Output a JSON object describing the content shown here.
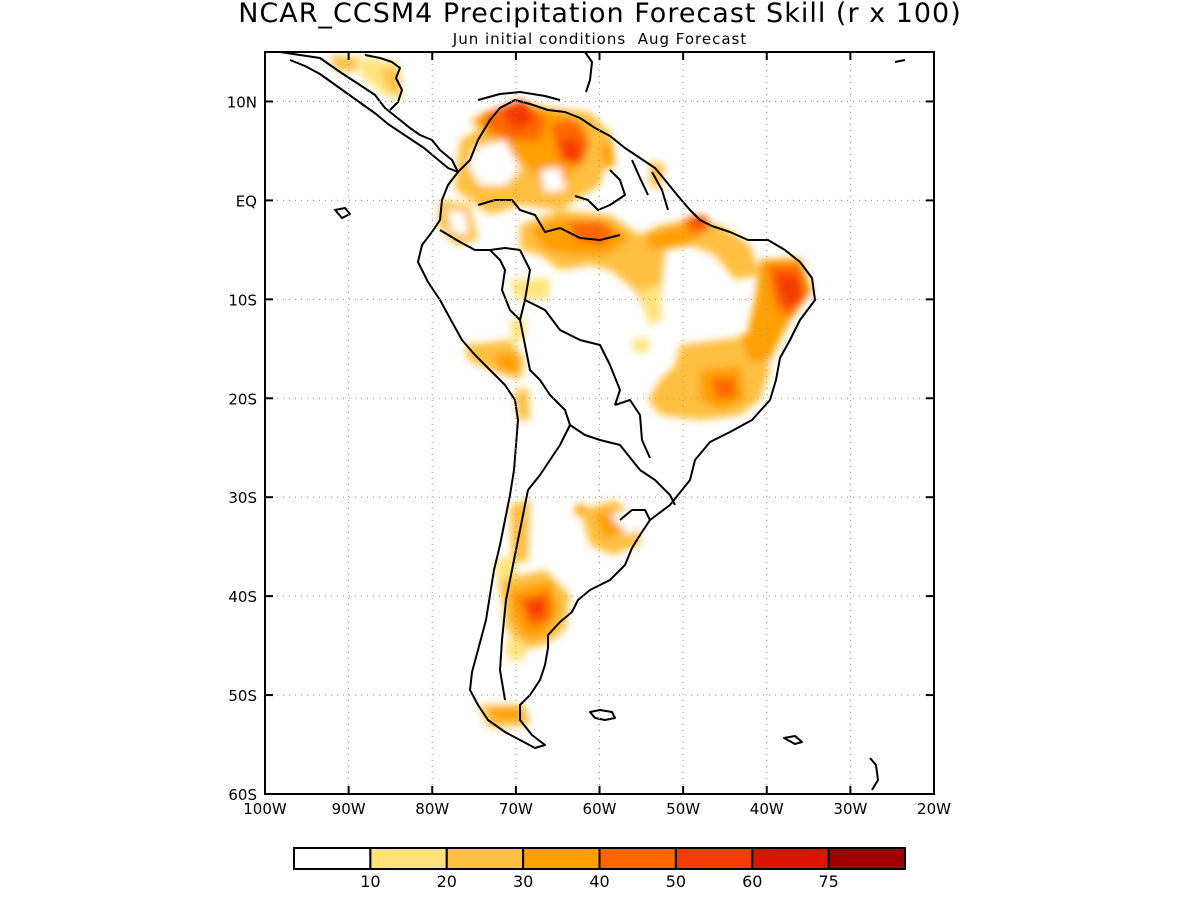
{
  "title": "NCAR_CCSM4 Precipitation Forecast Skill (r x 100)",
  "subtitle": "Jun initial conditions  Aug Forecast",
  "map": {
    "lon_range": [
      -100,
      -20
    ],
    "lat_range": [
      -60,
      15
    ],
    "x_ticks": [
      {
        "value": -100,
        "label": "100W"
      },
      {
        "value": -90,
        "label": "90W"
      },
      {
        "value": -80,
        "label": "80W"
      },
      {
        "value": -70,
        "label": "70W"
      },
      {
        "value": -60,
        "label": "60W"
      },
      {
        "value": -50,
        "label": "50W"
      },
      {
        "value": -40,
        "label": "40W"
      },
      {
        "value": -30,
        "label": "30W"
      },
      {
        "value": -20,
        "label": "20W"
      }
    ],
    "y_ticks": [
      {
        "value": 10,
        "label": "10N"
      },
      {
        "value": 0,
        "label": "EQ"
      },
      {
        "value": -10,
        "label": "10S"
      },
      {
        "value": -20,
        "label": "20S"
      },
      {
        "value": -30,
        "label": "30S"
      },
      {
        "value": -40,
        "label": "40S"
      },
      {
        "value": -50,
        "label": "50S"
      },
      {
        "value": -60,
        "label": "60S"
      }
    ],
    "grid": "dotted"
  },
  "colorbar": {
    "colors": [
      "#ffffff",
      "#ffe37a",
      "#ffbf3f",
      "#ff9f00",
      "#ff6600",
      "#f43b00",
      "#dc1400",
      "#a00000"
    ],
    "labels": [
      "10",
      "20",
      "30",
      "40",
      "50",
      "60",
      "75"
    ]
  },
  "skill_regions": [
    {
      "name": "north-colombia-venezuela",
      "level": 40,
      "lon": -68,
      "lat": 9
    },
    {
      "name": "venezuela-core",
      "level": 60,
      "lon": -69.5,
      "lat": 9.5
    },
    {
      "name": "guiana",
      "level": 50,
      "lon": -64,
      "lat": 6
    },
    {
      "name": "amazon-west",
      "level": 40,
      "lon": -62,
      "lat": -2
    },
    {
      "name": "amazon-mouth",
      "level": 50,
      "lon": -48,
      "lat": -1.5
    },
    {
      "name": "northeast-brazil",
      "level": 60,
      "lon": -37.5,
      "lat": -8.5
    },
    {
      "name": "southeast-brazil",
      "level": 40,
      "lon": -46,
      "lat": -18
    },
    {
      "name": "peru",
      "level": 30,
      "lon": -74,
      "lat": -14.5
    },
    {
      "name": "uruguay",
      "level": 30,
      "lon": -59,
      "lat": -32
    },
    {
      "name": "patagonia",
      "level": 60,
      "lon": -67,
      "lat": -41
    },
    {
      "name": "tierra-del-fuego",
      "level": 30,
      "lon": -70,
      "lat": -52.5
    }
  ]
}
